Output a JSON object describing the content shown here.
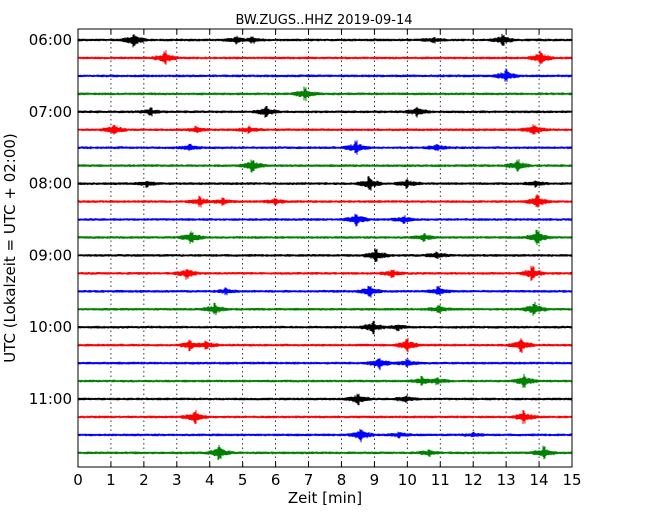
{
  "chart_data": {
    "type": "line",
    "title": "BW.ZUGS..HHZ 2019-09-14",
    "xlabel": "Zeit  [min]",
    "ylabel": "UTC (Lokalzeit = UTC + 02:00)",
    "xlim": [
      0,
      15
    ],
    "x_ticks": [
      "0",
      "1",
      "2",
      "3",
      "4",
      "5",
      "6",
      "7",
      "8",
      "9",
      "10",
      "11",
      "12",
      "13",
      "14",
      "15"
    ],
    "y_ticks": [
      "06:00",
      "07:00",
      "08:00",
      "09:00",
      "10:00",
      "11:00"
    ],
    "grid": "vertical dotted",
    "colors": [
      "#000000",
      "#ff0000",
      "#0000ff",
      "#008000"
    ],
    "traces": [
      {
        "start": "06:00",
        "color": "#000000",
        "events": [
          {
            "x": 1.7,
            "a": 1.0
          },
          {
            "x": 4.8,
            "a": 0.5
          },
          {
            "x": 5.3,
            "a": 0.4
          },
          {
            "x": 10.8,
            "a": 0.4
          },
          {
            "x": 12.9,
            "a": 0.8
          }
        ]
      },
      {
        "start": "06:15",
        "color": "#ff0000",
        "events": [
          {
            "x": 2.65,
            "a": 1.0
          },
          {
            "x": 14.05,
            "a": 1.0
          }
        ]
      },
      {
        "start": "06:30",
        "color": "#0000ff",
        "events": [
          {
            "x": 13.0,
            "a": 1.0
          }
        ]
      },
      {
        "start": "06:45",
        "color": "#008000",
        "events": [
          {
            "x": 6.9,
            "a": 0.9
          }
        ]
      },
      {
        "start": "07:00",
        "color": "#000000",
        "events": [
          {
            "x": 2.2,
            "a": 0.5
          },
          {
            "x": 5.7,
            "a": 0.8
          },
          {
            "x": 10.3,
            "a": 0.7
          }
        ]
      },
      {
        "start": "07:15",
        "color": "#ff0000",
        "events": [
          {
            "x": 1.1,
            "a": 0.8
          },
          {
            "x": 3.6,
            "a": 0.4
          },
          {
            "x": 5.2,
            "a": 0.5
          },
          {
            "x": 13.85,
            "a": 0.8
          }
        ]
      },
      {
        "start": "07:30",
        "color": "#0000ff",
        "events": [
          {
            "x": 3.4,
            "a": 0.4
          },
          {
            "x": 8.45,
            "a": 1.0
          },
          {
            "x": 10.9,
            "a": 0.5
          }
        ]
      },
      {
        "start": "07:45",
        "color": "#008000",
        "events": [
          {
            "x": 5.3,
            "a": 0.9
          },
          {
            "x": 13.35,
            "a": 0.9
          }
        ]
      },
      {
        "start": "08:00",
        "color": "#000000",
        "events": [
          {
            "x": 2.1,
            "a": 0.4
          },
          {
            "x": 8.85,
            "a": 1.0
          },
          {
            "x": 10.0,
            "a": 0.6
          },
          {
            "x": 13.9,
            "a": 0.4
          }
        ]
      },
      {
        "start": "08:15",
        "color": "#ff0000",
        "events": [
          {
            "x": 3.7,
            "a": 0.7
          },
          {
            "x": 4.4,
            "a": 0.5
          },
          {
            "x": 6.0,
            "a": 0.4
          },
          {
            "x": 13.95,
            "a": 0.9
          }
        ]
      },
      {
        "start": "08:30",
        "color": "#0000ff",
        "events": [
          {
            "x": 8.45,
            "a": 0.9
          },
          {
            "x": 9.9,
            "a": 0.5
          }
        ]
      },
      {
        "start": "08:45",
        "color": "#008000",
        "events": [
          {
            "x": 3.45,
            "a": 0.9
          },
          {
            "x": 10.5,
            "a": 0.5
          },
          {
            "x": 13.95,
            "a": 1.0
          }
        ]
      },
      {
        "start": "09:00",
        "color": "#000000",
        "events": [
          {
            "x": 9.05,
            "a": 1.0
          },
          {
            "x": 10.9,
            "a": 0.5
          }
        ]
      },
      {
        "start": "09:15",
        "color": "#ff0000",
        "events": [
          {
            "x": 3.3,
            "a": 0.8
          },
          {
            "x": 9.55,
            "a": 0.5
          },
          {
            "x": 13.8,
            "a": 1.0
          }
        ]
      },
      {
        "start": "09:30",
        "color": "#0000ff",
        "events": [
          {
            "x": 4.5,
            "a": 0.4
          },
          {
            "x": 8.85,
            "a": 0.8
          },
          {
            "x": 10.95,
            "a": 0.6
          }
        ]
      },
      {
        "start": "09:45",
        "color": "#008000",
        "events": [
          {
            "x": 4.15,
            "a": 0.9
          },
          {
            "x": 10.95,
            "a": 0.5
          },
          {
            "x": 13.85,
            "a": 1.0
          }
        ]
      },
      {
        "start": "10:00",
        "color": "#000000",
        "events": [
          {
            "x": 8.95,
            "a": 0.9
          },
          {
            "x": 9.7,
            "a": 0.4
          }
        ]
      },
      {
        "start": "10:15",
        "color": "#ff0000",
        "events": [
          {
            "x": 3.4,
            "a": 0.8
          },
          {
            "x": 3.9,
            "a": 0.6
          },
          {
            "x": 10.0,
            "a": 1.0
          },
          {
            "x": 13.45,
            "a": 1.0
          }
        ]
      },
      {
        "start": "10:30",
        "color": "#0000ff",
        "events": [
          {
            "x": 9.15,
            "a": 0.9
          },
          {
            "x": 10.0,
            "a": 0.5
          }
        ]
      },
      {
        "start": "10:45",
        "color": "#008000",
        "events": [
          {
            "x": 10.45,
            "a": 0.6
          },
          {
            "x": 10.9,
            "a": 0.5
          },
          {
            "x": 13.55,
            "a": 0.9
          }
        ]
      },
      {
        "start": "11:00",
        "color": "#000000",
        "events": [
          {
            "x": 8.5,
            "a": 0.9
          },
          {
            "x": 9.95,
            "a": 0.5
          }
        ]
      },
      {
        "start": "11:15",
        "color": "#ff0000",
        "events": [
          {
            "x": 3.55,
            "a": 0.9
          },
          {
            "x": 13.55,
            "a": 0.9
          }
        ]
      },
      {
        "start": "11:30",
        "color": "#0000ff",
        "events": [
          {
            "x": 8.6,
            "a": 1.0
          },
          {
            "x": 9.75,
            "a": 0.4
          },
          {
            "x": 12.0,
            "a": 0.3
          }
        ]
      },
      {
        "start": "11:45",
        "color": "#008000",
        "events": [
          {
            "x": 4.3,
            "a": 1.0
          },
          {
            "x": 10.65,
            "a": 0.4
          },
          {
            "x": 14.15,
            "a": 0.9
          }
        ]
      }
    ]
  }
}
